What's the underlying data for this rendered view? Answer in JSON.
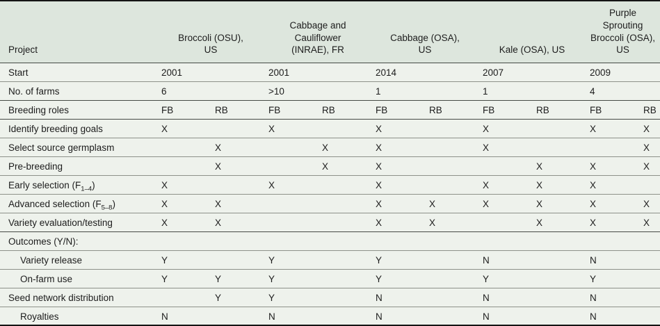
{
  "colors": {
    "header_background": "#dde6dd",
    "body_background": "#eef2ec",
    "text": "#1c1c1c",
    "row_separator": "#8d9189",
    "section_separator": "#454a45",
    "frame_border": "#141414"
  },
  "table": {
    "corner_label": "Project",
    "projects": [
      {
        "title": "Broccoli (OSU),\nUS"
      },
      {
        "title": "Cabbage and\nCauliflower\n(INRAE), FR"
      },
      {
        "title": "Cabbage (OSA),\nUS"
      },
      {
        "title": "Kale (OSA), US"
      },
      {
        "title": "Purple\nSprouting\nBroccoli (OSA),\nUS"
      }
    ],
    "role_column_labels": [
      "FB",
      "RB"
    ],
    "rows": [
      {
        "label": {
          "pre": "Start",
          "sub": "",
          "post": ""
        },
        "indent": false,
        "cells": [
          "2001",
          "",
          "2001",
          "",
          "2014",
          "",
          "2007",
          "",
          "2009",
          ""
        ]
      },
      {
        "label": {
          "pre": "No. of farms",
          "sub": "",
          "post": ""
        },
        "indent": false,
        "cells": [
          "6",
          "",
          ">10",
          "",
          "1",
          "",
          "1",
          "",
          "4",
          ""
        ]
      },
      {
        "label": {
          "pre": "Breeding roles",
          "sub": "",
          "post": ""
        },
        "indent": false,
        "cells": [
          "FB",
          "RB",
          "FB",
          "RB",
          "FB",
          "RB",
          "FB",
          "RB",
          "FB",
          "RB"
        ]
      },
      {
        "label": {
          "pre": "Identify breeding goals",
          "sub": "",
          "post": ""
        },
        "indent": false,
        "cells": [
          "X",
          "",
          "X",
          "",
          "X",
          "",
          "X",
          "",
          "X",
          "X"
        ]
      },
      {
        "label": {
          "pre": "Select source germplasm",
          "sub": "",
          "post": ""
        },
        "indent": false,
        "cells": [
          "",
          "X",
          "",
          "X",
          "X",
          "",
          "X",
          "",
          "",
          "X"
        ]
      },
      {
        "label": {
          "pre": "Pre-breeding",
          "sub": "",
          "post": ""
        },
        "indent": false,
        "cells": [
          "",
          "X",
          "",
          "X",
          "X",
          "",
          "",
          "X",
          "X",
          "X"
        ]
      },
      {
        "label": {
          "pre": "Early selection (F",
          "sub": "1–4",
          "post": ")"
        },
        "indent": false,
        "cells": [
          "X",
          "",
          "X",
          "",
          "X",
          "",
          "X",
          "X",
          "X",
          ""
        ]
      },
      {
        "label": {
          "pre": "Advanced selection (F",
          "sub": "5–8",
          "post": ")"
        },
        "indent": false,
        "cells": [
          "X",
          "X",
          "",
          "",
          "X",
          "X",
          "X",
          "X",
          "X",
          "X"
        ]
      },
      {
        "label": {
          "pre": "Variety evaluation/testing",
          "sub": "",
          "post": ""
        },
        "indent": false,
        "cells": [
          "X",
          "X",
          "",
          "",
          "X",
          "X",
          "",
          "X",
          "X",
          "X"
        ]
      },
      {
        "label": {
          "pre": "Outcomes (Y/N):",
          "sub": "",
          "post": ""
        },
        "indent": false,
        "cells": [
          "",
          "",
          "",
          "",
          "",
          "",
          "",
          "",
          "",
          ""
        ]
      },
      {
        "label": {
          "pre": "Variety release",
          "sub": "",
          "post": ""
        },
        "indent": true,
        "cells": [
          "Y",
          "",
          "Y",
          "",
          "Y",
          "",
          "N",
          "",
          "N",
          ""
        ]
      },
      {
        "label": {
          "pre": "On-farm use",
          "sub": "",
          "post": ""
        },
        "indent": true,
        "cells": [
          "Y",
          "Y",
          "Y",
          "",
          "Y",
          "",
          "Y",
          "",
          "Y",
          ""
        ]
      },
      {
        "label": {
          "pre": "Seed network distribution",
          "sub": "",
          "post": ""
        },
        "indent": false,
        "cells": [
          "",
          "Y",
          "Y",
          "",
          "N",
          "",
          "N",
          "",
          "N",
          ""
        ]
      },
      {
        "label": {
          "pre": "Royalties",
          "sub": "",
          "post": ""
        },
        "indent": true,
        "cells": [
          "N",
          "",
          "N",
          "",
          "N",
          "",
          "N",
          "",
          "N",
          ""
        ]
      }
    ]
  }
}
